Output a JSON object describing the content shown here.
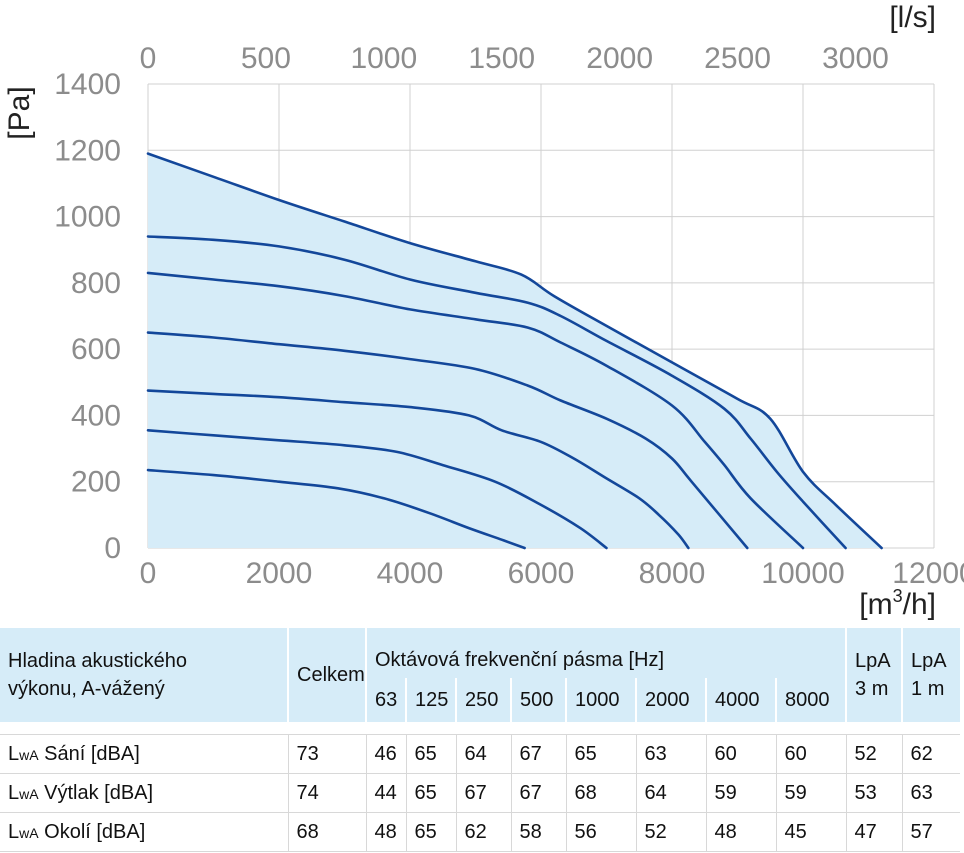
{
  "chart_data": {
    "type": "line",
    "xlabel": "[m³/h]",
    "xlabel_base": "[m",
    "xlabel_sup": "3",
    "xlabel_tail": "/h]",
    "x2label": "[l/s]",
    "ylabel": "[Pa]",
    "xlim": [
      0,
      12000
    ],
    "x2lim": [
      0,
      3333
    ],
    "ylim": [
      0,
      1400
    ],
    "x_ticks": [
      "0",
      "2000",
      "4000",
      "6000",
      "8000",
      "10000",
      "12000"
    ],
    "x2_ticks": [
      "0",
      "500",
      "1000",
      "1500",
      "2000",
      "2500",
      "3000"
    ],
    "y_ticks": [
      "0",
      "200",
      "400",
      "600",
      "800",
      "1000",
      "1200",
      "1400"
    ],
    "grid": true,
    "area_fill": "#d6ecf8",
    "line_color": "#13479a",
    "series": [
      {
        "x": [
          0,
          1000,
          2000,
          3000,
          4000,
          5000,
          5700,
          6200,
          7000,
          8000,
          9000,
          9500,
          10000,
          10500,
          11200
        ],
        "y": [
          1190,
          1120,
          1050,
          985,
          920,
          865,
          825,
          760,
          670,
          560,
          450,
          390,
          230,
          130,
          0
        ]
      },
      {
        "x": [
          0,
          1000,
          2000,
          3000,
          4000,
          5000,
          5800,
          6300,
          7000,
          8000,
          8800,
          9200,
          9600,
          10000,
          10650
        ],
        "y": [
          940,
          930,
          910,
          870,
          810,
          770,
          740,
          700,
          625,
          520,
          420,
          330,
          230,
          140,
          0
        ]
      },
      {
        "x": [
          0,
          1000,
          2000,
          3000,
          4000,
          5000,
          5800,
          6300,
          7000,
          8000,
          8500,
          8800,
          9200,
          10000
        ],
        "y": [
          830,
          810,
          790,
          760,
          720,
          690,
          665,
          620,
          550,
          430,
          320,
          250,
          150,
          0
        ]
      },
      {
        "x": [
          0,
          1000,
          2000,
          3000,
          4000,
          5000,
          5800,
          6300,
          7000,
          7600,
          8000,
          8300,
          9150
        ],
        "y": [
          650,
          635,
          615,
          595,
          570,
          540,
          490,
          445,
          390,
          330,
          270,
          200,
          0
        ]
      },
      {
        "x": [
          0,
          1000,
          2000,
          3000,
          4000,
          4900,
          5400,
          6000,
          6500,
          7000,
          7500,
          7800,
          8100,
          8250
        ],
        "y": [
          475,
          465,
          455,
          440,
          425,
          400,
          355,
          320,
          270,
          210,
          150,
          100,
          40,
          0
        ]
      },
      {
        "x": [
          0,
          1000,
          2000,
          3000,
          3800,
          4500,
          5300,
          6000,
          6600,
          7000
        ],
        "y": [
          355,
          340,
          325,
          310,
          290,
          250,
          200,
          130,
          60,
          0
        ]
      },
      {
        "x": [
          0,
          1000,
          2000,
          2900,
          3600,
          4300,
          4900,
          5400,
          5750
        ],
        "y": [
          235,
          220,
          200,
          180,
          150,
          105,
          60,
          25,
          0
        ]
      }
    ]
  },
  "table": {
    "header_title_line1": "Hladina akustického",
    "header_title_line2": "výkonu, A-vážený",
    "header_total": "Celkem",
    "header_octave": "Oktávová frekvenční pásma [Hz]",
    "header_lpa3_line1": "LpA",
    "header_lpa3_line2": "3 m",
    "header_lpa1_line1": "LpA",
    "header_lpa1_line2": "1 m",
    "bands": [
      "63",
      "125",
      "250",
      "500",
      "1000",
      "2000",
      "4000",
      "8000"
    ],
    "rows": [
      {
        "prefix": "L",
        "sub": "wA",
        "label": " Sání [dBA]",
        "total": "73",
        "bands": [
          "46",
          "65",
          "64",
          "67",
          "65",
          "63",
          "60",
          "60"
        ],
        "lpa3": "52",
        "lpa1": "62"
      },
      {
        "prefix": "L",
        "sub": "wA",
        "label": " Výtlak [dBA]",
        "total": "74",
        "bands": [
          "44",
          "65",
          "67",
          "67",
          "68",
          "64",
          "59",
          "59"
        ],
        "lpa3": "53",
        "lpa1": "63"
      },
      {
        "prefix": "L",
        "sub": "wA",
        "label": " Okolí [dBA]",
        "total": "68",
        "bands": [
          "48",
          "65",
          "62",
          "58",
          "56",
          "52",
          "48",
          "45"
        ],
        "lpa3": "47",
        "lpa1": "57"
      }
    ]
  }
}
